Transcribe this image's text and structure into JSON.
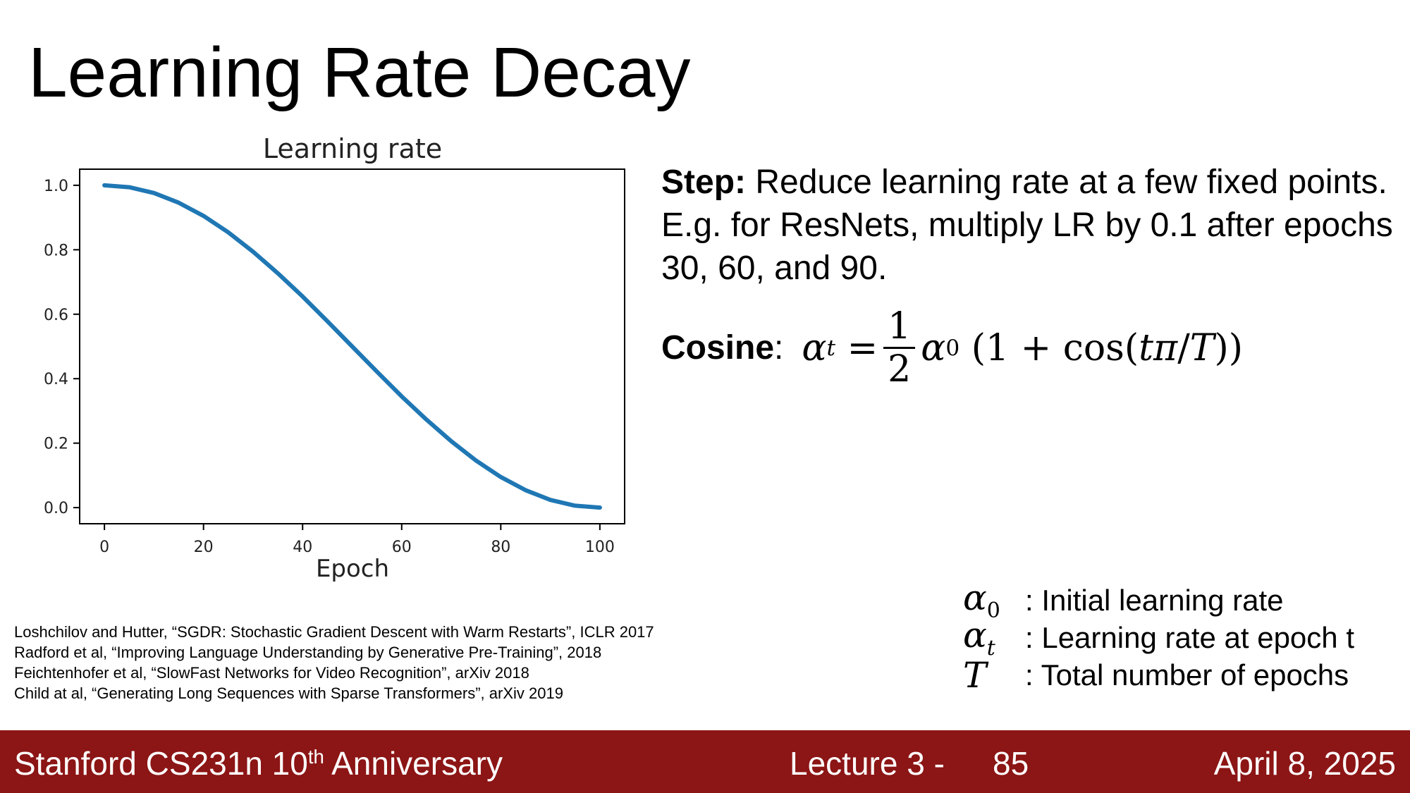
{
  "slide": {
    "title": "Learning Rate Decay",
    "step_label": "Step:",
    "step_text": " Reduce learning rate at a few fixed points. E.g. for ResNets, multiply LR by 0.1 after epochs 30, 60, and 90.",
    "cosine_label": "Cosine",
    "cosine_colon": ":"
  },
  "legend": {
    "items": [
      {
        "symbol": "α0",
        "text": ": Initial learning rate"
      },
      {
        "symbol": "αt",
        "text": ": Learning rate at epoch t"
      },
      {
        "symbol": "T",
        "text": ": Total number of epochs"
      }
    ]
  },
  "references": [
    "Loshchilov and Hutter, “SGDR: Stochastic Gradient Descent with Warm Restarts”, ICLR 2017",
    "Radford et al, “Improving Language Understanding by Generative Pre-Training”, 2018",
    "Feichtenhofer et al, “SlowFast Networks for Video Recognition”, arXiv 2018",
    "Child at al, “Generating Long Sequences with Sparse Transformers”, arXiv 2019"
  ],
  "footer": {
    "course_prefix": "Stanford CS231n 10",
    "course_sup": "th",
    "course_suffix": " Anniversary",
    "lecture": "Lecture 3 -",
    "page": "85",
    "date": "April 8, 2025"
  },
  "chart_data": {
    "type": "line",
    "title": "Learning rate",
    "xlabel": "Epoch",
    "ylabel": "",
    "xlim": [
      -5,
      105
    ],
    "ylim": [
      -0.05,
      1.05
    ],
    "xticks": [
      0,
      20,
      40,
      60,
      80,
      100
    ],
    "yticks": [
      0.0,
      0.2,
      0.4,
      0.6,
      0.8,
      1.0
    ],
    "xtick_labels": [
      "0",
      "20",
      "40",
      "60",
      "80",
      "100"
    ],
    "ytick_labels": [
      "0.0",
      "0.2",
      "0.4",
      "0.6",
      "0.8",
      "1.0"
    ],
    "grid": false,
    "line_color": "#1f77b4",
    "series": [
      {
        "x": [
          0,
          5,
          10,
          15,
          20,
          25,
          30,
          35,
          40,
          45,
          50,
          55,
          60,
          65,
          70,
          75,
          80,
          85,
          90,
          95,
          100
        ],
        "values": [
          1.0,
          0.994,
          0.976,
          0.946,
          0.905,
          0.854,
          0.794,
          0.727,
          0.655,
          0.578,
          0.5,
          0.422,
          0.345,
          0.273,
          0.206,
          0.146,
          0.095,
          0.054,
          0.024,
          0.006,
          0.0
        ]
      }
    ]
  }
}
